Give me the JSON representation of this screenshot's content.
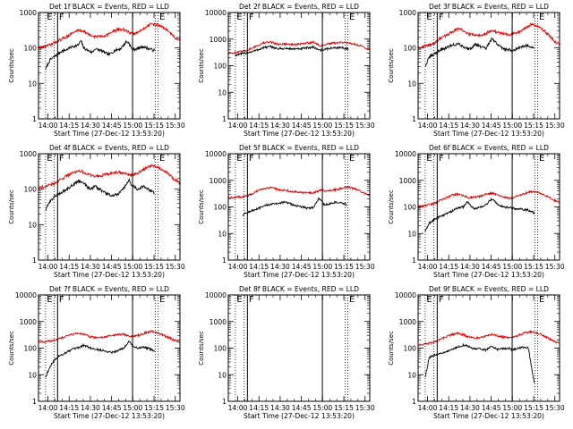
{
  "figure": {
    "start_time_label": "Start Time (27-Dec-12 13:53:20)",
    "ylabel": "Counts/sec",
    "time_ticks": [
      "14:00",
      "14:15",
      "14:30",
      "14:45",
      "15:00",
      "15:15",
      "15:30"
    ],
    "y_ticks": [
      "1",
      "10",
      "100",
      "1000",
      "10000"
    ],
    "series_colors": {
      "events": "#000000",
      "lld": "#e00000"
    },
    "markers": [
      {
        "label": "E",
        "time_min": 5.0,
        "style": "dotted"
      },
      {
        "label": "",
        "time_min": 11.0,
        "style": "dotted"
      },
      {
        "label": "F",
        "time_min": 13.5,
        "style": "solid"
      },
      {
        "label": "",
        "time_min": 66.5,
        "style": "solid"
      },
      {
        "label": "",
        "time_min": 82.5,
        "style": "dotted"
      },
      {
        "label": "E",
        "time_min": 84.5,
        "style": "dotted"
      }
    ]
  },
  "chart_data": [
    {
      "type": "line",
      "title": "Det 1f BLACK = Events, RED = LLD",
      "x_unit": "minutes after 13:53:20",
      "xlim": [
        0,
        100
      ],
      "ylim": [
        1,
        1000
      ],
      "yscale": "log",
      "ytick_values": [
        1,
        10,
        100,
        1000
      ],
      "series": [
        {
          "name": "Events",
          "x": [
            5,
            8,
            12,
            16,
            20,
            24,
            28,
            30,
            32,
            35,
            38,
            40,
            44,
            48,
            50,
            54,
            58,
            62,
            64,
            66,
            70,
            74,
            78,
            82
          ],
          "values": [
            25,
            45,
            60,
            80,
            90,
            110,
            120,
            160,
            100,
            85,
            75,
            95,
            85,
            70,
            65,
            85,
            95,
            150,
            140,
            90,
            95,
            110,
            95,
            85
          ]
        },
        {
          "name": "LLD",
          "x": [
            0,
            4,
            8,
            12,
            16,
            20,
            24,
            28,
            32,
            36,
            40,
            44,
            48,
            52,
            56,
            60,
            64,
            68,
            72,
            76,
            80,
            84,
            88,
            92,
            96,
            100
          ],
          "values": [
            100,
            110,
            120,
            145,
            175,
            210,
            260,
            320,
            300,
            230,
            210,
            210,
            230,
            280,
            330,
            340,
            270,
            250,
            300,
            400,
            480,
            450,
            380,
            300,
            200,
            160
          ]
        }
      ]
    },
    {
      "type": "line",
      "title": "Det 2f BLACK = Events, RED = LLD",
      "x_unit": "minutes after 13:53:20",
      "xlim": [
        0,
        100
      ],
      "ylim": [
        1,
        10000
      ],
      "yscale": "log",
      "ytick_values": [
        1,
        10,
        100,
        1000,
        10000
      ],
      "series": [
        {
          "name": "Events",
          "x": [
            5,
            10,
            15,
            20,
            25,
            30,
            35,
            40,
            45,
            50,
            55,
            60,
            65,
            70,
            75,
            80,
            85
          ],
          "values": [
            250,
            280,
            320,
            380,
            480,
            520,
            430,
            440,
            430,
            420,
            460,
            500,
            380,
            430,
            470,
            480,
            420
          ]
        },
        {
          "name": "LLD",
          "x": [
            0,
            5,
            10,
            15,
            20,
            25,
            30,
            35,
            40,
            45,
            50,
            55,
            60,
            65,
            70,
            75,
            80,
            85,
            90,
            95,
            100
          ],
          "values": [
            300,
            310,
            340,
            420,
            550,
            720,
            780,
            640,
            660,
            620,
            640,
            700,
            780,
            560,
            650,
            720,
            750,
            700,
            640,
            520,
            400
          ]
        }
      ]
    },
    {
      "type": "line",
      "title": "Det 3f BLACK = Events, RED = LLD",
      "x_unit": "minutes after 13:53:20",
      "xlim": [
        0,
        100
      ],
      "ylim": [
        1,
        1000
      ],
      "yscale": "log",
      "ytick_values": [
        1,
        10,
        100,
        1000
      ],
      "series": [
        {
          "name": "Events",
          "x": [
            5,
            8,
            12,
            16,
            20,
            24,
            28,
            32,
            35,
            38,
            40,
            44,
            48,
            52,
            56,
            60,
            64,
            66,
            70,
            74,
            78,
            82
          ],
          "values": [
            30,
            55,
            70,
            90,
            100,
            120,
            130,
            110,
            95,
            100,
            130,
            110,
            95,
            180,
            130,
            95,
            90,
            85,
            95,
            110,
            120,
            95
          ]
        },
        {
          "name": "LLD",
          "x": [
            0,
            4,
            8,
            12,
            16,
            20,
            24,
            28,
            32,
            36,
            40,
            44,
            48,
            52,
            56,
            60,
            64,
            68,
            72,
            76,
            80,
            84,
            88,
            92,
            96,
            100
          ],
          "values": [
            100,
            110,
            120,
            140,
            190,
            230,
            280,
            350,
            310,
            240,
            230,
            230,
            260,
            320,
            270,
            260,
            240,
            260,
            300,
            380,
            460,
            420,
            330,
            240,
            160,
            130
          ]
        }
      ]
    },
    {
      "type": "line",
      "title": "Det 4f BLACK = Events, RED = LLD",
      "x_unit": "minutes after 13:53:20",
      "xlim": [
        0,
        100
      ],
      "ylim": [
        1,
        1000
      ],
      "yscale": "log",
      "ytick_values": [
        1,
        10,
        100,
        1000
      ],
      "series": [
        {
          "name": "Events",
          "x": [
            5,
            8,
            12,
            16,
            20,
            24,
            28,
            32,
            35,
            38,
            40,
            44,
            48,
            52,
            56,
            60,
            64,
            66,
            70,
            74,
            78,
            82
          ],
          "values": [
            25,
            45,
            65,
            80,
            100,
            130,
            170,
            150,
            110,
            105,
            120,
            95,
            75,
            65,
            70,
            100,
            180,
            130,
            100,
            120,
            95,
            80
          ]
        },
        {
          "name": "LLD",
          "x": [
            0,
            4,
            8,
            12,
            16,
            20,
            24,
            28,
            32,
            36,
            40,
            44,
            48,
            52,
            56,
            60,
            64,
            68,
            72,
            76,
            80,
            84,
            88,
            92,
            96,
            100
          ],
          "values": [
            110,
            120,
            130,
            150,
            190,
            240,
            290,
            330,
            300,
            250,
            230,
            240,
            260,
            280,
            300,
            290,
            250,
            260,
            310,
            400,
            470,
            430,
            350,
            270,
            190,
            150
          ]
        }
      ]
    },
    {
      "type": "line",
      "title": "Det 5f BLACK = Events, RED = LLD",
      "x_unit": "minutes after 13:53:20",
      "xlim": [
        0,
        100
      ],
      "ylim": [
        1,
        10000
      ],
      "yscale": "log",
      "ytick_values": [
        1,
        10,
        100,
        1000,
        10000
      ],
      "series": [
        {
          "name": "Events",
          "x": [
            10,
            13,
            16,
            20,
            24,
            28,
            32,
            36,
            40,
            44,
            48,
            52,
            55,
            60,
            64,
            68,
            72,
            76,
            80,
            84
          ],
          "values": [
            50,
            60,
            70,
            80,
            100,
            120,
            130,
            140,
            150,
            130,
            110,
            100,
            90,
            95,
            210,
            120,
            130,
            150,
            140,
            120
          ]
        },
        {
          "name": "LLD",
          "x": [
            0,
            5,
            10,
            15,
            20,
            25,
            30,
            35,
            40,
            45,
            50,
            55,
            60,
            65,
            70,
            75,
            80,
            85,
            90,
            95,
            100
          ],
          "values": [
            220,
            230,
            240,
            280,
            380,
            480,
            560,
            450,
            420,
            390,
            360,
            330,
            350,
            420,
            400,
            430,
            500,
            560,
            460,
            360,
            260
          ]
        }
      ]
    },
    {
      "type": "line",
      "title": "Det 6f BLACK = Events, RED = LLD",
      "x_unit": "minutes after 13:53:20",
      "xlim": [
        0,
        100
      ],
      "ylim": [
        1,
        10000
      ],
      "yscale": "log",
      "ytick_values": [
        1,
        10,
        100,
        1000,
        10000
      ],
      "series": [
        {
          "name": "Events",
          "x": [
            5,
            8,
            12,
            16,
            20,
            24,
            28,
            32,
            35,
            38,
            40,
            44,
            48,
            52,
            56,
            60,
            64,
            66,
            70,
            74,
            78,
            82
          ],
          "values": [
            12,
            25,
            35,
            45,
            55,
            70,
            90,
            100,
            160,
            100,
            85,
            95,
            120,
            200,
            130,
            100,
            95,
            90,
            85,
            80,
            75,
            60
          ]
        },
        {
          "name": "LLD",
          "x": [
            0,
            4,
            8,
            12,
            16,
            20,
            24,
            28,
            32,
            36,
            40,
            44,
            48,
            52,
            56,
            60,
            64,
            68,
            72,
            76,
            80,
            84,
            88,
            92,
            96,
            100
          ],
          "values": [
            100,
            110,
            120,
            140,
            180,
            220,
            280,
            300,
            260,
            220,
            240,
            250,
            300,
            330,
            290,
            240,
            210,
            230,
            280,
            330,
            380,
            350,
            300,
            240,
            180,
            150
          ]
        }
      ]
    },
    {
      "type": "line",
      "title": "Det 7f BLACK = Events, RED = LLD",
      "x_unit": "minutes after 13:53:20",
      "xlim": [
        0,
        100
      ],
      "ylim": [
        1,
        10000
      ],
      "yscale": "log",
      "ytick_values": [
        1,
        10,
        100,
        1000,
        10000
      ],
      "series": [
        {
          "name": "Events",
          "x": [
            5,
            8,
            12,
            16,
            20,
            24,
            28,
            32,
            35,
            38,
            40,
            44,
            48,
            52,
            56,
            60,
            64,
            66,
            70,
            74,
            78,
            82
          ],
          "values": [
            8,
            20,
            40,
            55,
            70,
            90,
            100,
            130,
            110,
            95,
            90,
            85,
            75,
            70,
            80,
            100,
            180,
            130,
            100,
            110,
            95,
            80
          ]
        },
        {
          "name": "LLD",
          "x": [
            0,
            4,
            8,
            12,
            16,
            20,
            24,
            28,
            32,
            36,
            40,
            44,
            48,
            52,
            56,
            60,
            64,
            68,
            72,
            76,
            80,
            84,
            88,
            92,
            96,
            100
          ],
          "values": [
            170,
            175,
            180,
            200,
            240,
            290,
            330,
            360,
            330,
            270,
            250,
            250,
            270,
            300,
            320,
            330,
            280,
            280,
            320,
            380,
            420,
            380,
            310,
            250,
            200,
            170
          ]
        }
      ]
    },
    {
      "type": "line",
      "title": "Det 8f BLACK = Events, RED = LLD",
      "x_unit": "minutes after 13:53:20",
      "xlim": [
        0,
        100
      ],
      "ylim": [
        1,
        10000
      ],
      "yscale": "log",
      "ytick_values": [
        1,
        10,
        100,
        1000,
        10000
      ],
      "series": []
    },
    {
      "type": "line",
      "title": "Det 9f BLACK = Events, RED = LLD",
      "x_unit": "minutes after 13:53:20",
      "xlim": [
        0,
        100
      ],
      "ylim": [
        1,
        10000
      ],
      "yscale": "log",
      "ytick_values": [
        1,
        10,
        100,
        1000,
        10000
      ],
      "series": [
        {
          "name": "Events",
          "x": [
            5,
            8,
            12,
            16,
            20,
            24,
            28,
            32,
            35,
            38,
            40,
            44,
            48,
            52,
            56,
            60,
            64,
            66,
            70,
            74,
            78,
            82
          ],
          "values": [
            8,
            45,
            55,
            65,
            70,
            90,
            110,
            130,
            120,
            100,
            95,
            90,
            85,
            120,
            90,
            95,
            100,
            90,
            95,
            110,
            100,
            5
          ]
        },
        {
          "name": "LLD",
          "x": [
            0,
            4,
            8,
            12,
            16,
            20,
            24,
            28,
            32,
            36,
            40,
            44,
            48,
            52,
            56,
            60,
            64,
            68,
            72,
            76,
            80,
            84,
            88,
            92,
            96,
            100
          ],
          "values": [
            130,
            140,
            150,
            170,
            220,
            270,
            320,
            360,
            320,
            260,
            240,
            250,
            290,
            330,
            300,
            260,
            240,
            270,
            320,
            380,
            410,
            370,
            310,
            240,
            180,
            150
          ]
        }
      ]
    }
  ]
}
